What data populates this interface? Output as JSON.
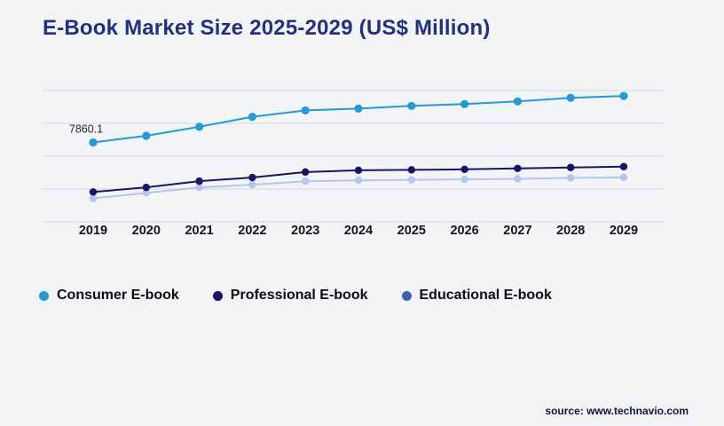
{
  "page": {
    "title": "E-Book Market Size 2025-2029 (US$ Million)",
    "source": "source: www.technavio.com"
  },
  "chart_data": {
    "type": "line",
    "title": "E-Book Market Size 2025-2029 (US$ Million)",
    "x": [
      "2019",
      "2020",
      "2021",
      "2022",
      "2023",
      "2024",
      "2025",
      "2026",
      "2027",
      "2028",
      "2029"
    ],
    "ylim": [
      0,
      13000
    ],
    "gridline_count": 5,
    "y_ticks_labeled": false,
    "grid": "horizontal",
    "legend_position": "bottom",
    "annotation": {
      "text": "7860.1",
      "series": "Consumer E-book",
      "x": "2019",
      "value": 7860.1
    },
    "series": [
      {
        "name": "Consumer E-book",
        "color": "#259ad6",
        "values": [
          7860.1,
          8520,
          9410,
          10400,
          11030,
          11210,
          11480,
          11660,
          11920,
          12280,
          12460
        ]
      },
      {
        "name": "Professional E-book",
        "color": "#1b1464",
        "values": [
          2960,
          3410,
          4030,
          4390,
          4930,
          5110,
          5150,
          5200,
          5290,
          5380,
          5470
        ]
      },
      {
        "name": "Educational E-book",
        "color": "#3a64ae",
        "line_color": "#b3c6ee",
        "values": [
          2330,
          2870,
          3400,
          3680,
          4020,
          4110,
          4160,
          4210,
          4260,
          4350,
          4400
        ]
      }
    ]
  }
}
